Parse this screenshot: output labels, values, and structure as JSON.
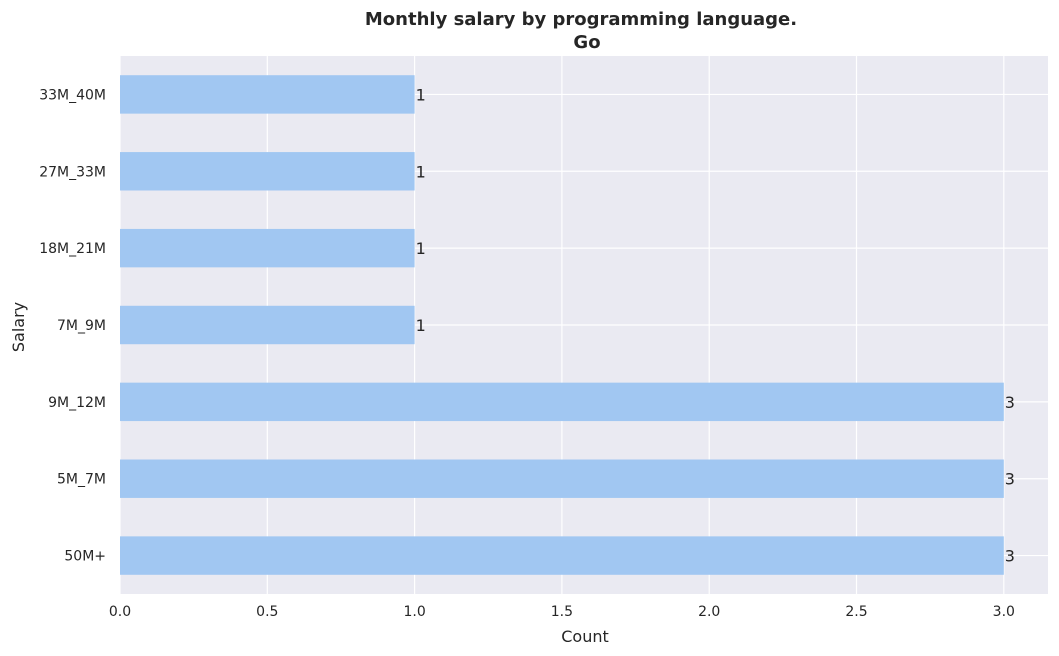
{
  "chart_data": {
    "type": "bar",
    "orientation": "horizontal",
    "title": "Monthly salary by programming language.",
    "subtitle": "Go",
    "xlabel": "Count",
    "ylabel": "Salary",
    "categories": [
      "33M_40M",
      "27M_33M",
      "18M_21M",
      "7M_9M",
      "9M_12M",
      "5M_7M",
      "50M+"
    ],
    "values": [
      1,
      1,
      1,
      1,
      3,
      3,
      3
    ],
    "data_labels": [
      "1",
      "1",
      "1",
      "1",
      "3",
      "3",
      "3"
    ],
    "xlim": [
      0,
      3.15
    ],
    "xticks": [
      0,
      0.5,
      1,
      1.5,
      2,
      2.5,
      3
    ],
    "xtick_labels": [
      "0.0",
      "0.5",
      "1.0",
      "1.5",
      "2.0",
      "2.5",
      "3.0"
    ],
    "grid": true,
    "colors": {
      "bar": "#a1c7f2",
      "plot_background": "#eaeaf2",
      "grid": "#ffffff",
      "text": "#262626"
    }
  }
}
